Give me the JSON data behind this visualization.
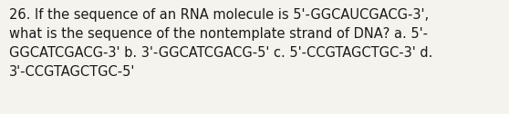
{
  "text": "26. If the sequence of an RNA molecule is 5'-GGCAUCGACG-3',\nwhat is the sequence of the nontemplate strand of DNA? a. 5'-\nGGCATCGACG-3' b. 3'-GGCATCGACG-5' c. 5'-CCGTAGCTGC-3' d.\n3'-CCGTAGCTGC-5'",
  "background_color": "#f5f3ee",
  "text_color": "#1a1a1a",
  "font_size": 10.5,
  "fig_width": 5.58,
  "fig_height": 1.26
}
